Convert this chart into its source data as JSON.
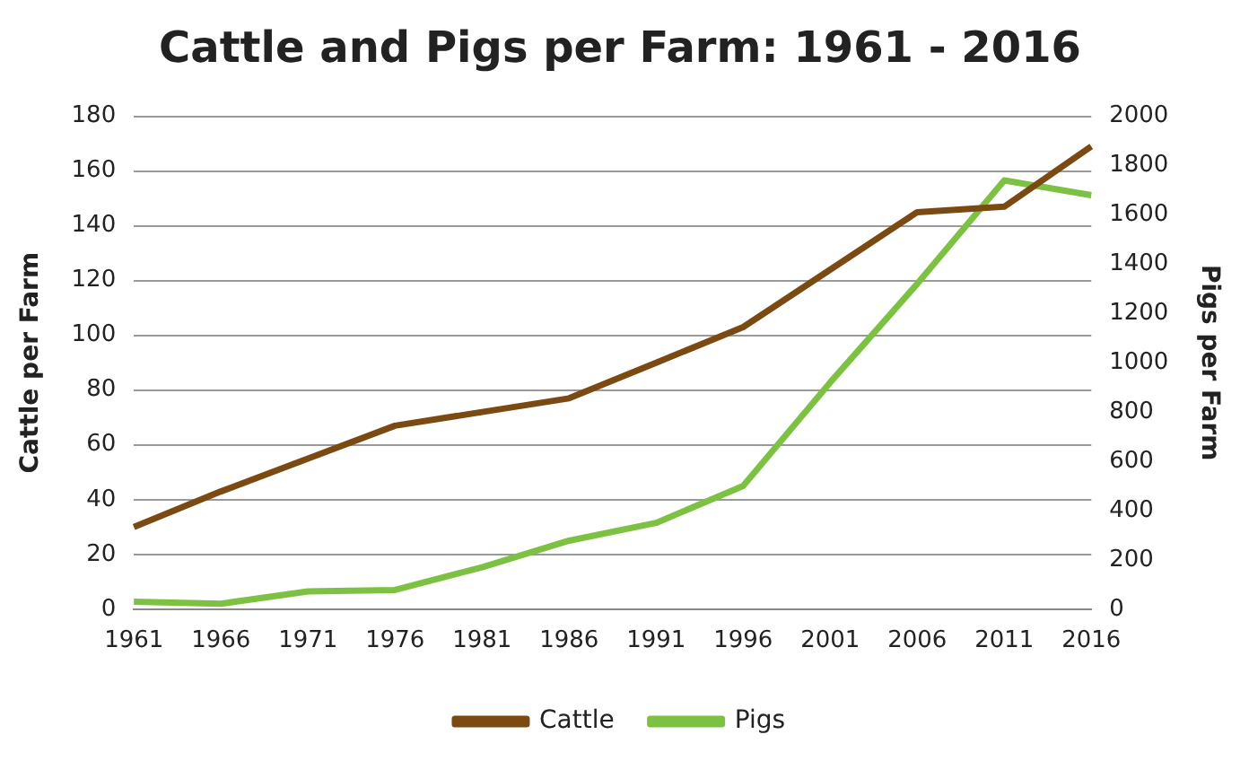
{
  "chart_data": {
    "type": "line",
    "title": "Cattle and Pigs per Farm: 1961 - 2016",
    "ylabel": "Cattle per Farm",
    "y2label": "Pigs per Farm",
    "categories": [
      "1961",
      "1966",
      "1971",
      "1976",
      "1981",
      "1986",
      "1991",
      "1996",
      "2001",
      "2006",
      "2011",
      "2016"
    ],
    "series": [
      {
        "name": "Cattle",
        "color": "#7b4a12",
        "values": [
          30,
          43,
          55,
          67,
          72,
          77,
          90,
          103,
          124,
          145,
          147,
          169
        ]
      },
      {
        "name": "Pigs",
        "color": "#7dc142",
        "axis": "y2",
        "values": [
          30,
          22,
          72,
          78,
          170,
          278,
          350,
          500,
          920,
          1320,
          1740,
          1680
        ]
      }
    ],
    "ylim": [
      0,
      180
    ],
    "yticks": [
      0,
      20,
      40,
      60,
      80,
      100,
      120,
      140,
      160,
      180
    ],
    "y2lim": [
      0,
      2000
    ],
    "y2ticks": [
      0,
      200,
      400,
      600,
      800,
      1000,
      1200,
      1400,
      1600,
      1800,
      2000
    ],
    "grid": "y",
    "legend": "bottom",
    "marker": "none",
    "line_style": "solid"
  }
}
